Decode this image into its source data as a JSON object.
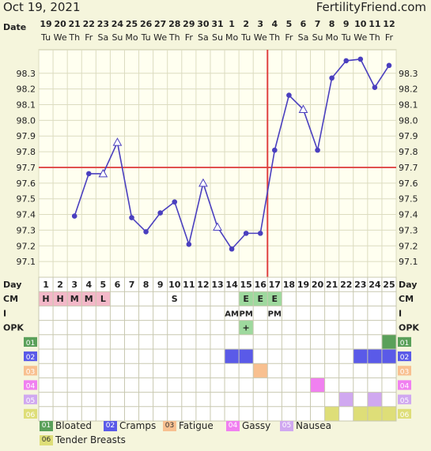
{
  "header": {
    "date": "Oct 19, 2021",
    "site": "FertilityFriend.com"
  },
  "labels": {
    "date": "Date",
    "day": "Day",
    "cm": "CM",
    "i": "I",
    "opk": "OPK"
  },
  "colors": {
    "line": "#4a3fbf",
    "coverline": "#e05050",
    "ovulation": "#e04040",
    "grid": "#dcdcc0",
    "chartbg": "#fffff0",
    "cmpink": "#f3b8c8",
    "cmgreen": "#9ed99e",
    "opkgreen": "#9ed99e"
  },
  "chart_data": {
    "type": "line",
    "title": "",
    "xlabel": "Day",
    "ylabel": "",
    "x": [
      1,
      2,
      3,
      4,
      5,
      6,
      7,
      8,
      9,
      10,
      11,
      12,
      13,
      14,
      15,
      16,
      17,
      18,
      19,
      20,
      21,
      22,
      23,
      24,
      25
    ],
    "dates": [
      "19",
      "20",
      "21",
      "22",
      "23",
      "24",
      "25",
      "26",
      "27",
      "28",
      "29",
      "30",
      "31",
      "1",
      "2",
      "3",
      "4",
      "5",
      "6",
      "7",
      "8",
      "9",
      "10",
      "11",
      "12"
    ],
    "weekdays": [
      "Tu",
      "We",
      "Th",
      "Fr",
      "Sa",
      "Su",
      "Mo",
      "Tu",
      "We",
      "Th",
      "Fr",
      "Sa",
      "Su",
      "Mo",
      "Tu",
      "We",
      "Th",
      "Fr",
      "Sa",
      "Su",
      "Mo",
      "Tu",
      "We",
      "Th",
      "Fr"
    ],
    "series": [
      {
        "values": [
          null,
          null,
          97.39,
          97.66,
          97.66,
          97.86,
          97.38,
          97.29,
          97.41,
          97.48,
          97.21,
          97.6,
          97.32,
          97.18,
          97.28,
          97.28,
          97.81,
          98.16,
          98.07,
          97.81,
          98.27,
          98.38,
          98.39,
          98.21,
          98.35
        ]
      }
    ],
    "open_markers": [
      5,
      6,
      12,
      13,
      19
    ],
    "ylim": [
      97.0,
      98.45
    ],
    "yticks": [
      "97.1",
      "97.2",
      "97.3",
      "97.4",
      "97.5",
      "97.6",
      "97.7",
      "97.8",
      "97.9",
      "98.0",
      "98.1",
      "98.2",
      "98.3"
    ],
    "coverline": 97.7,
    "ovulation_day": 16,
    "grid": true
  },
  "rows": {
    "cm": [
      "H",
      "H",
      "M",
      "M",
      "L",
      "",
      "",
      "",
      "",
      "S",
      "",
      "",
      "",
      "",
      "E",
      "E",
      "E",
      "",
      "",
      "",
      "",
      "",
      "",
      "",
      ""
    ],
    "i": [
      "",
      "",
      "",
      "",
      "",
      "",
      "",
      "",
      "",
      "",
      "",
      "",
      "",
      "AM",
      "PM",
      "",
      "PM",
      "",
      "",
      "",
      "",
      "",
      "",
      "",
      ""
    ],
    "opk": [
      "",
      "",
      "",
      "",
      "",
      "",
      "",
      "",
      "",
      "",
      "",
      "",
      "",
      "",
      "+",
      "",
      "",
      "",
      "",
      "",
      "",
      "",
      "",
      "",
      ""
    ]
  },
  "symptoms": [
    {
      "code": "01",
      "name": "Bloated",
      "color": "#5aa05a",
      "days": [
        25
      ]
    },
    {
      "code": "02",
      "name": "Cramps",
      "color": "#5a5ae8",
      "days": [
        14,
        15,
        23,
        24,
        25
      ]
    },
    {
      "code": "03",
      "name": "Fatigue",
      "color": "#f8c090",
      "days": [
        16
      ]
    },
    {
      "code": "04",
      "name": "Gassy",
      "color": "#f080f0",
      "days": [
        20
      ]
    },
    {
      "code": "05",
      "name": "Nausea",
      "color": "#d0a8f0",
      "days": [
        22,
        24
      ]
    },
    {
      "code": "06",
      "name": "Tender Breasts",
      "color": "#dede78",
      "days": [
        21,
        23,
        24,
        25
      ]
    }
  ]
}
